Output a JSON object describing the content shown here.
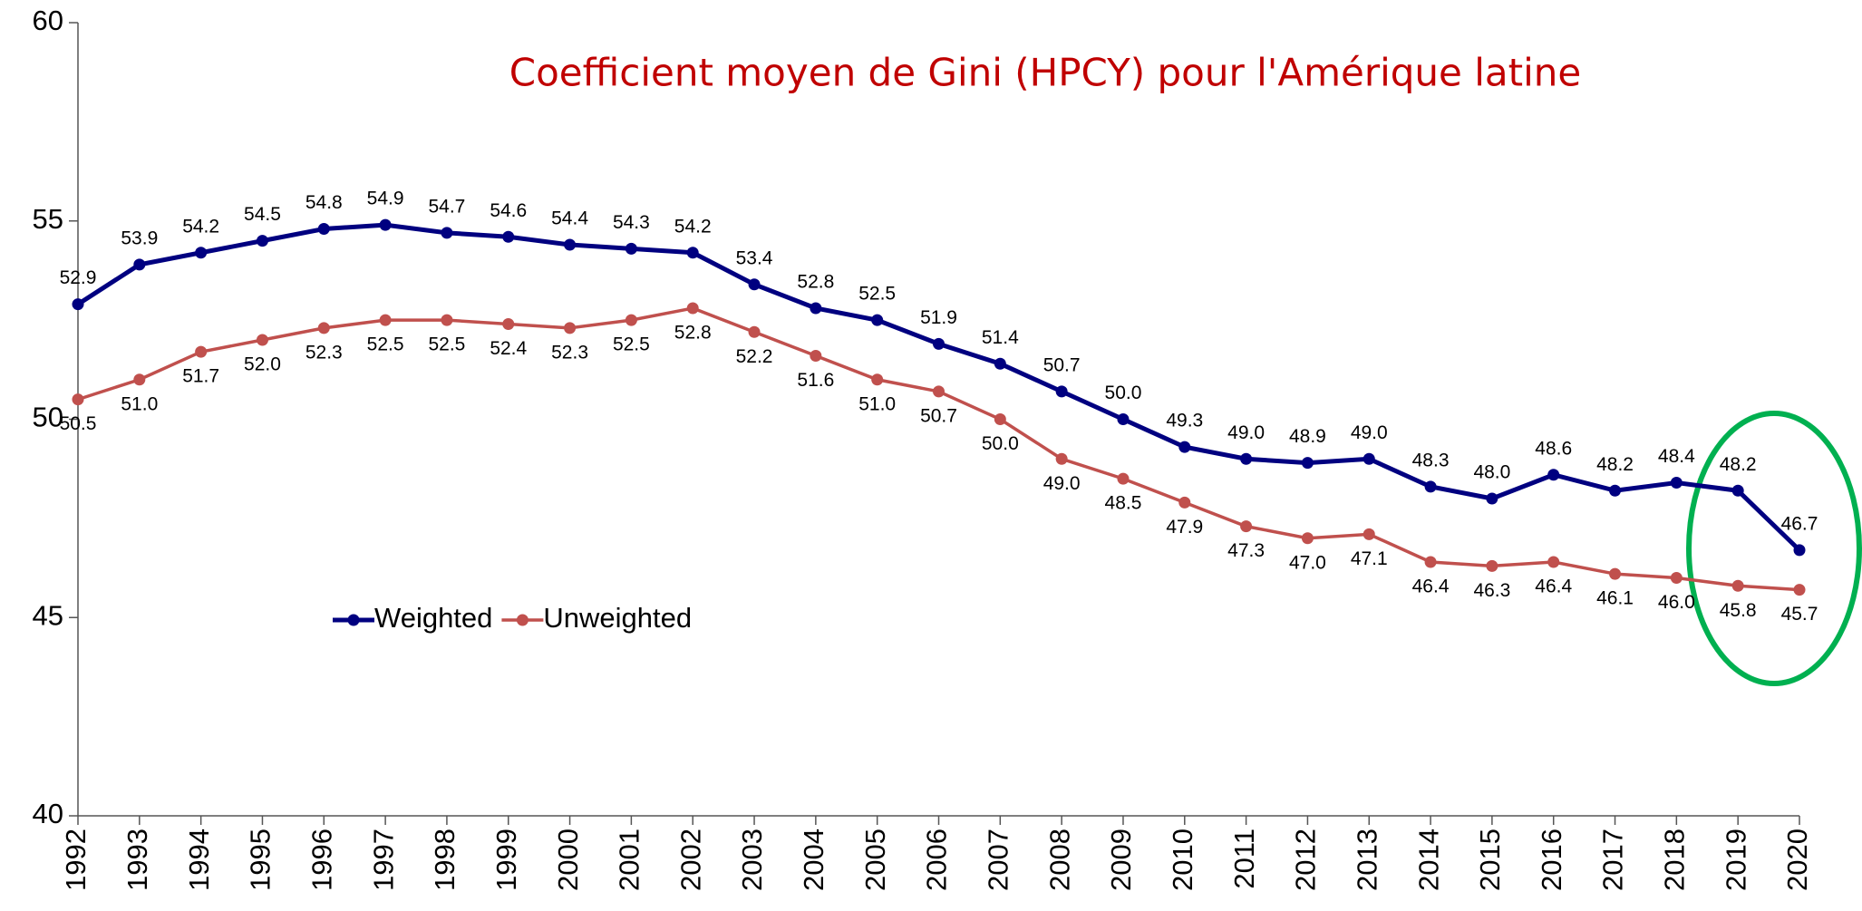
{
  "chart_data": {
    "type": "line",
    "title": "Coefficient moyen de Gini (HPCY) pour l'Amérique latine",
    "categories": [
      "1992",
      "1993",
      "1994",
      "1995",
      "1996",
      "1997",
      "1998",
      "1999",
      "2000",
      "2001",
      "2002",
      "2003",
      "2004",
      "2005",
      "2006",
      "2007",
      "2008",
      "2009",
      "2010",
      "2011",
      "2012",
      "2013",
      "2014",
      "2015",
      "2016",
      "2017",
      "2018",
      "2019",
      "2020"
    ],
    "series": [
      {
        "name": "Weighted",
        "color": "#000080",
        "values": [
          52.9,
          53.9,
          54.2,
          54.5,
          54.8,
          54.9,
          54.7,
          54.6,
          54.4,
          54.3,
          54.2,
          53.4,
          52.8,
          52.5,
          51.9,
          51.4,
          50.7,
          50.0,
          49.3,
          49.0,
          48.9,
          49.0,
          48.3,
          48.0,
          48.6,
          48.2,
          48.4,
          48.2,
          46.7
        ],
        "value_labels": [
          "52.9",
          "53.9",
          "54.2",
          "54.5",
          "54.8",
          "54.9",
          "54.7",
          "54.6",
          "54.4",
          "54.3",
          "54.2",
          "53.4",
          "52.8",
          "52.5",
          "51.9",
          "51.4",
          "50.7",
          "50.0",
          "49.3",
          "49.0",
          "48.9",
          "49.0",
          "48.3",
          "48.0",
          "48.6",
          "48.2",
          "48.4",
          "48.2",
          "46.7"
        ]
      },
      {
        "name": "Unweighted",
        "color": "#c0504d",
        "values": [
          50.5,
          51.0,
          51.7,
          52.0,
          52.3,
          52.5,
          52.5,
          52.4,
          52.3,
          52.5,
          52.8,
          52.2,
          51.6,
          51.0,
          50.7,
          50.0,
          49.0,
          48.5,
          47.9,
          47.3,
          47.0,
          47.1,
          46.4,
          46.3,
          46.4,
          46.1,
          46.0,
          45.8,
          45.7
        ],
        "value_labels": [
          "50.5",
          "51.0",
          "51.7",
          "52.0",
          "52.3",
          "52.5",
          "52.5",
          "52.4",
          "52.3",
          "52.5",
          "52.8",
          "52.2",
          "51.6",
          "51.0",
          "50.7",
          "50.0",
          "49.0",
          "48.5",
          "47.9",
          "47.3",
          "47.0",
          "47.1",
          "46.4",
          "46.3",
          "46.4",
          "46.1",
          "46.0",
          "45.8",
          "45.7"
        ]
      }
    ],
    "ylim": [
      40,
      60
    ],
    "yticks": [
      40,
      45,
      50,
      55,
      60
    ],
    "grid": false,
    "legend": "center left"
  }
}
